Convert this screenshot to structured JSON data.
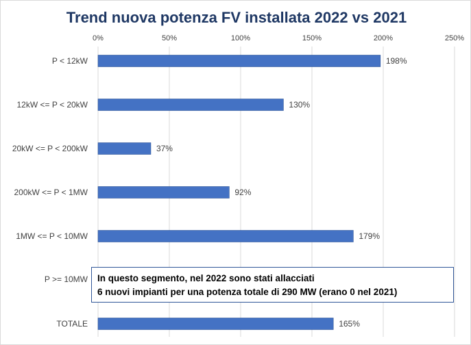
{
  "chart_data": {
    "type": "bar",
    "orientation": "horizontal",
    "title": "Trend nuova potenza FV installata 2022 vs 2021",
    "categories": [
      "P < 12kW",
      "12kW <= P < 20kW",
      "20kW <= P < 200kW",
      "200kW <= P < 1MW",
      "1MW <= P < 10MW",
      "P >= 10MW",
      "TOTALE"
    ],
    "values": [
      198,
      130,
      37,
      92,
      179,
      null,
      165
    ],
    "value_labels": [
      "198%",
      "130%",
      "37%",
      "92%",
      "179%",
      "",
      "165%"
    ],
    "unit": "%",
    "xlim": [
      0,
      250
    ],
    "x_ticks": [
      "0%",
      "50%",
      "100%",
      "150%",
      "200%",
      "250%"
    ],
    "x_tick_values": [
      0,
      50,
      100,
      150,
      200,
      250
    ],
    "x_axis_position": "top",
    "grid": true,
    "bar_color": "#4472c4",
    "title_color": "#1f3864"
  },
  "note": {
    "line1": "In questo segmento, nel 2022 sono stati allacciati",
    "line2": "6 nuovi impianti per una potenza totale di 290 MW (erano 0 nel 2021)"
  }
}
